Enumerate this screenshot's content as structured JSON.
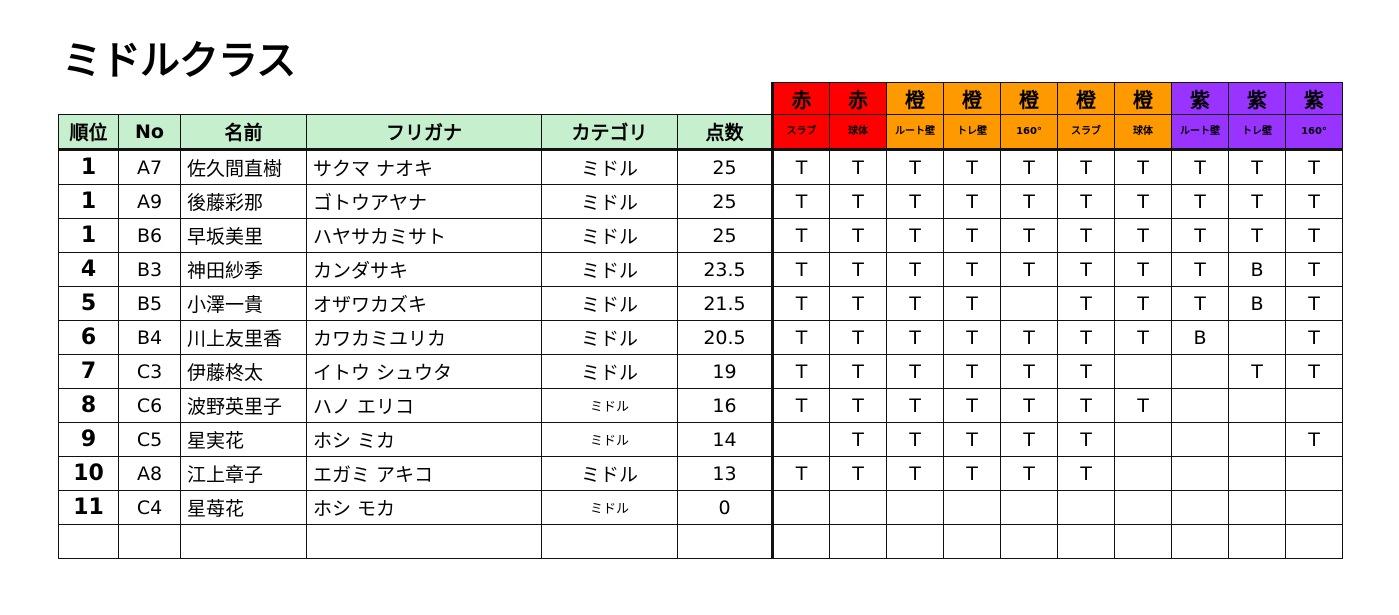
{
  "title": "ミドルクラス",
  "headers": [
    "順位",
    "No",
    "名前",
    "フリガナ",
    "カテゴリ",
    "点数"
  ],
  "colors": {
    "red": "#ff0000",
    "orange": "#ff9900",
    "purple": "#9933ff",
    "header_green": "#c6efce"
  },
  "groups": [
    {
      "color": "赤",
      "sub": "スラブ",
      "hex": "#ff0000"
    },
    {
      "color": "赤",
      "sub": "球体",
      "hex": "#ff0000"
    },
    {
      "color": "橙",
      "sub": "ルート壁",
      "hex": "#ff9900"
    },
    {
      "color": "橙",
      "sub": "トレ壁",
      "hex": "#ff9900"
    },
    {
      "color": "橙",
      "sub": "160°",
      "hex": "#ff9900"
    },
    {
      "color": "橙",
      "sub": "スラブ",
      "hex": "#ff9900"
    },
    {
      "color": "橙",
      "sub": "球体",
      "hex": "#ff9900"
    },
    {
      "color": "紫",
      "sub": "ルート壁",
      "hex": "#9933ff"
    },
    {
      "color": "紫",
      "sub": "トレ壁",
      "hex": "#9933ff"
    },
    {
      "color": "紫",
      "sub": "160°",
      "hex": "#9933ff"
    }
  ],
  "rows": [
    {
      "rank": "1",
      "no": "A7",
      "name": "佐久間直樹",
      "kana": "サクマ ナオキ",
      "cat": "ミドル",
      "score": "25",
      "marks": [
        "T",
        "T",
        "T",
        "T",
        "T",
        "T",
        "T",
        "T",
        "T",
        "T"
      ]
    },
    {
      "rank": "1",
      "no": "A9",
      "name": "後藤彩那",
      "kana": "ゴトウアヤナ",
      "cat": "ミドル",
      "score": "25",
      "marks": [
        "T",
        "T",
        "T",
        "T",
        "T",
        "T",
        "T",
        "T",
        "T",
        "T"
      ]
    },
    {
      "rank": "1",
      "no": "B6",
      "name": "早坂美里",
      "kana": "ハヤサカミサト",
      "cat": "ミドル",
      "score": "25",
      "marks": [
        "T",
        "T",
        "T",
        "T",
        "T",
        "T",
        "T",
        "T",
        "T",
        "T"
      ]
    },
    {
      "rank": "4",
      "no": "B3",
      "name": "神田紗季",
      "kana": "カンダサキ",
      "cat": "ミドル",
      "score": "23.5",
      "marks": [
        "T",
        "T",
        "T",
        "T",
        "T",
        "T",
        "T",
        "T",
        "B",
        "T"
      ]
    },
    {
      "rank": "5",
      "no": "B5",
      "name": "小澤一貴",
      "kana": "オザワカズキ",
      "cat": "ミドル",
      "score": "21.5",
      "marks": [
        "T",
        "T",
        "T",
        "T",
        "",
        "T",
        "T",
        "T",
        "B",
        "T"
      ]
    },
    {
      "rank": "6",
      "no": "B4",
      "name": "川上友里香",
      "kana": "カワカミユリカ",
      "cat": "ミドル",
      "score": "20.5",
      "marks": [
        "T",
        "T",
        "T",
        "T",
        "T",
        "T",
        "T",
        "B",
        "",
        "T"
      ]
    },
    {
      "rank": "7",
      "no": "C3",
      "name": "伊藤柊太",
      "kana": "イトウ シュウタ",
      "cat": "ミドル",
      "score": "19",
      "marks": [
        "T",
        "T",
        "T",
        "T",
        "T",
        "T",
        "",
        "",
        "T",
        "T"
      ]
    },
    {
      "rank": "8",
      "no": "C6",
      "name": "波野英里子",
      "kana": "ハノ エリコ",
      "cat": "ミドル",
      "score": "16",
      "marks": [
        "T",
        "T",
        "T",
        "T",
        "T",
        "T",
        "T",
        "",
        "",
        ""
      ],
      "small": true
    },
    {
      "rank": "9",
      "no": "C5",
      "name": "星実花",
      "kana": "ホシ ミカ",
      "cat": "ミドル",
      "score": "14",
      "marks": [
        "",
        "T",
        "T",
        "T",
        "T",
        "T",
        "",
        "",
        "",
        "T"
      ],
      "small": true
    },
    {
      "rank": "10",
      "no": "A8",
      "name": "江上章子",
      "kana": "エガミ アキコ",
      "cat": "ミドル",
      "score": "13",
      "marks": [
        "T",
        "T",
        "T",
        "T",
        "T",
        "T",
        "",
        "",
        "",
        ""
      ]
    },
    {
      "rank": "11",
      "no": "C4",
      "name": "星苺花",
      "kana": "ホシ モカ",
      "cat": "ミドル",
      "score": "0",
      "marks": [
        "",
        "",
        "",
        "",
        "",
        "",
        "",
        "",
        "",
        ""
      ],
      "small": true
    },
    {
      "rank": "",
      "no": "",
      "name": "",
      "kana": "",
      "cat": "",
      "score": "",
      "marks": [
        "",
        "",
        "",
        "",
        "",
        "",
        "",
        "",
        "",
        ""
      ]
    }
  ]
}
